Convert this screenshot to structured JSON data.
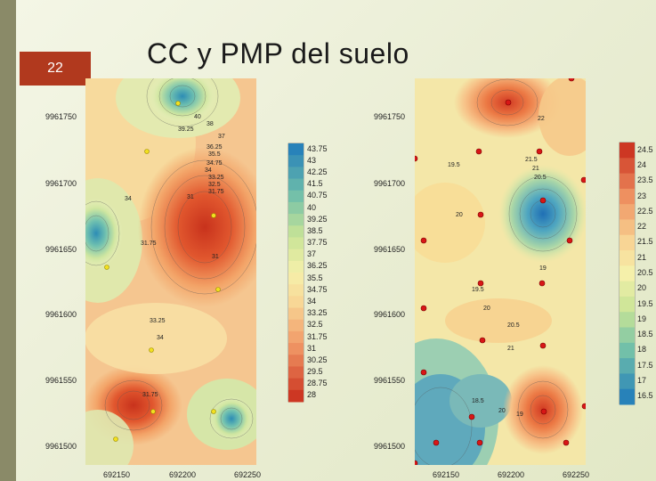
{
  "slide": {
    "number": "22",
    "title": "CC y PMP del suelo"
  },
  "maps": [
    {
      "name": "CC",
      "y_ticks": [
        "9961750",
        "9961700",
        "9961650",
        "9961600",
        "9961550",
        "9961500"
      ],
      "x_ticks": [
        "692150",
        "692200",
        "692250"
      ],
      "colorbar": [
        "43.75",
        "43",
        "42.25",
        "41.5",
        "40.75",
        "40",
        "39.25",
        "38.5",
        "37.75",
        "37",
        "36.25",
        "35.5",
        "34.75",
        "34",
        "33.25",
        "32.5",
        "31.75",
        "31",
        "30.25",
        "29.5",
        "28.75",
        "28"
      ]
    },
    {
      "name": "PMP",
      "y_ticks": [
        "9961750",
        "9961700",
        "9961650",
        "9961600",
        "9961550",
        "9961500"
      ],
      "x_ticks": [
        "692150",
        "692200",
        "692250"
      ],
      "colorbar": [
        "24.5",
        "24",
        "23.5",
        "23",
        "22.5",
        "22",
        "21.5",
        "21",
        "20.5",
        "20",
        "19.5",
        "19",
        "18.5",
        "18",
        "17.5",
        "17",
        "16.5"
      ]
    }
  ],
  "contour_labels_left": [
    "40",
    "38",
    "39.25",
    "37",
    "36.25",
    "35.5",
    "34.75",
    "34",
    "33.25",
    "32.5",
    "31.75",
    "31",
    "34",
    "31.75",
    "31",
    "33.25",
    "34",
    "31.75"
  ],
  "contour_labels_right": [
    "22",
    "19.5",
    "21.5",
    "21",
    "20.5",
    "20",
    "19",
    "19.5",
    "20",
    "20.5",
    "21",
    "18.5",
    "19",
    "20"
  ],
  "colors": {
    "accent_bar": "#b1391e",
    "left_stripe": "#8a8a68"
  }
}
